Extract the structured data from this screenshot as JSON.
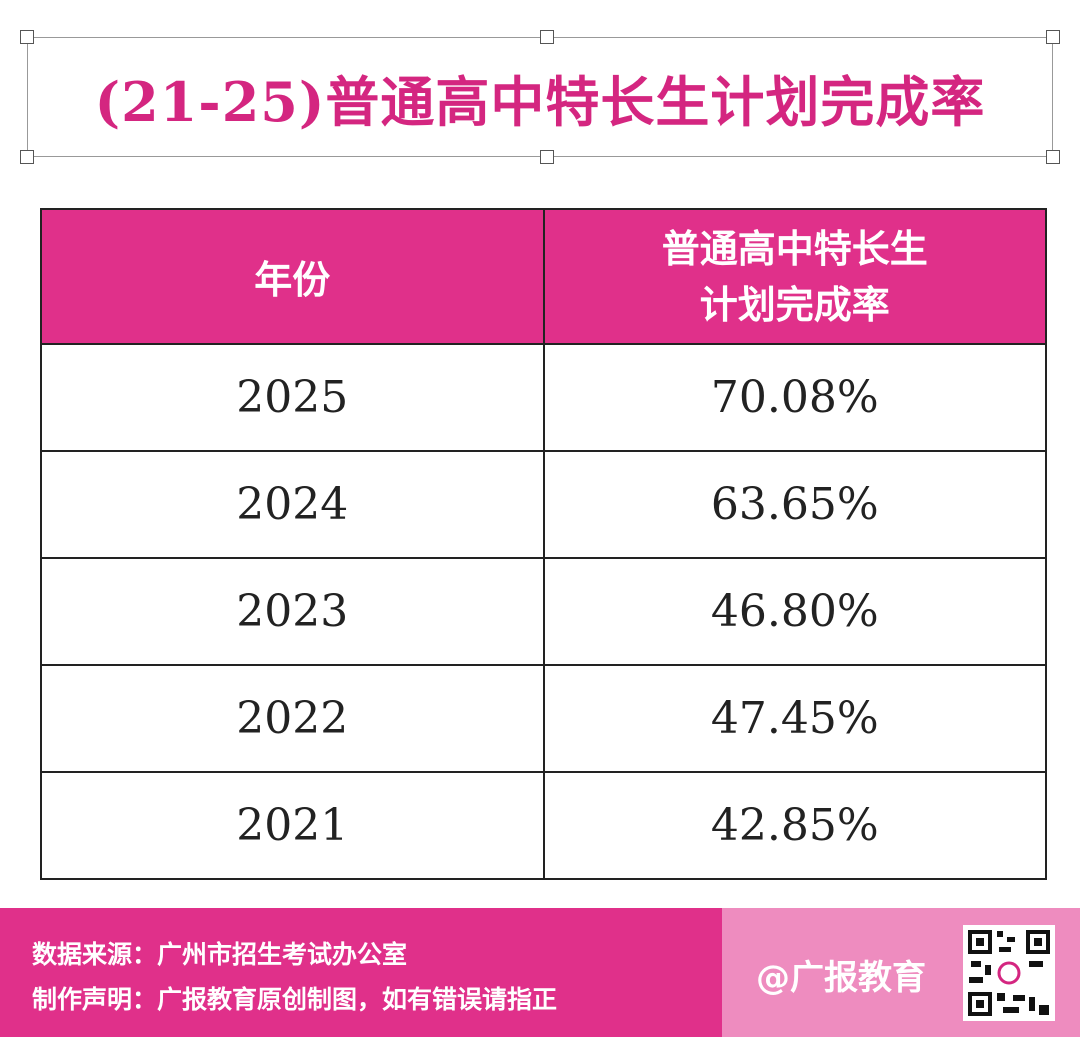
{
  "header": {
    "title": "(21-25)普通高中特长生计划完成率"
  },
  "table": {
    "columns": [
      "年份",
      "普通高中特长生计划完成率"
    ],
    "rows": [
      [
        "2025",
        "70.08%"
      ],
      [
        "2024",
        "63.65%"
      ],
      [
        "2023",
        "46.80%"
      ],
      [
        "2022",
        "47.45%"
      ],
      [
        "2021",
        "42.85%"
      ]
    ]
  },
  "footer": {
    "source": "数据来源：广州市招生考试办公室",
    "statement": "制作声明：广报教育原创制图，如有错误请指正",
    "brand": "@广报教育"
  }
}
